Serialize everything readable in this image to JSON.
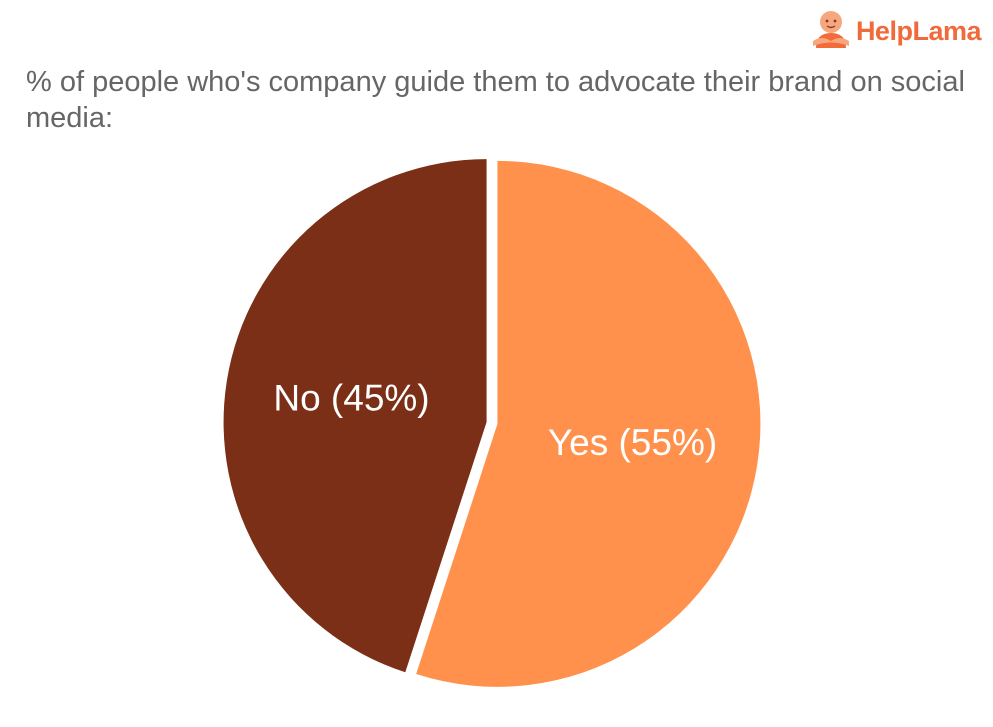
{
  "logo": {
    "text_part1": "Help",
    "text_part2": "Lama"
  },
  "chart_data": {
    "type": "pie",
    "title": "% of people who's company guide them to advocate their brand on social media:",
    "slices": [
      {
        "label": "Yes (55%)",
        "category": "Yes",
        "value": 55,
        "color": "#ff914d"
      },
      {
        "label": "No (45%)",
        "category": "No",
        "value": 45,
        "color": "#7b2f16"
      }
    ],
    "start": "top",
    "direction": "clockwise",
    "legend": "none"
  }
}
